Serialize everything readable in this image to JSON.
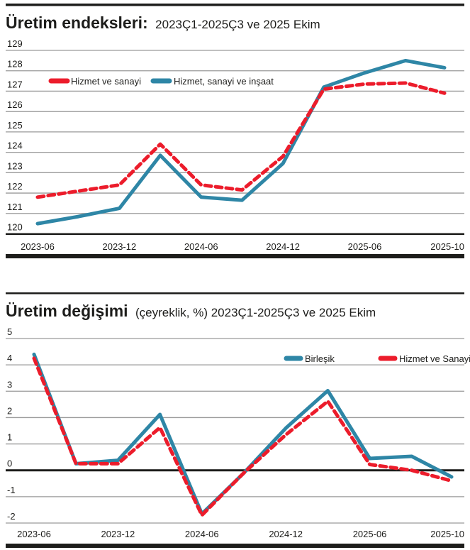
{
  "colors": {
    "blue": "#2e86a6",
    "red": "#ec1c2b",
    "rule": "#1d1d1b"
  },
  "chart_data": [
    {
      "type": "line",
      "title": "Üretim endeksleri:",
      "subtitle": "2023Ç1-2025Ç3 ve 2025 Ekim",
      "xlabel": "",
      "ylabel": "",
      "ylim": [
        120,
        129
      ],
      "yticks": [
        "120",
        "121",
        "122",
        "123",
        "124",
        "125",
        "126",
        "127",
        "128",
        "129"
      ],
      "grid": true,
      "legend_position": "top-left",
      "x": [
        "2023-06",
        "2023-09",
        "2023-12",
        "2024-03",
        "2024-06",
        "2024-09",
        "2024-12",
        "2025-03",
        "2025-06",
        "2025-09",
        "2025-10"
      ],
      "xticks": [
        "2023-06",
        "2023-12",
        "2024-06",
        "2024-12",
        "2025-06",
        "2025-10"
      ],
      "series": [
        {
          "name": "Hizmet ve sanayi",
          "style": "dashed",
          "color": "#ec1c2b",
          "values": [
            121.8,
            122.1,
            122.4,
            124.4,
            122.4,
            122.15,
            123.8,
            127.1,
            127.35,
            127.4,
            126.9
          ]
        },
        {
          "name": "Hizmet, sanayi ve inşaat",
          "style": "solid",
          "color": "#2e86a6",
          "values": [
            120.5,
            120.85,
            121.25,
            123.85,
            121.8,
            121.65,
            123.45,
            127.2,
            127.9,
            128.5,
            128.15
          ]
        }
      ]
    },
    {
      "type": "line",
      "title": "Üretim değişimi",
      "subtitle": "(çeyreklik, %) 2023Ç1-2025Ç3 ve 2025 Ekim",
      "xlabel": "",
      "ylabel": "",
      "ylim": [
        -2,
        5
      ],
      "yticks": [
        "-2",
        "-1",
        "0",
        "1",
        "2",
        "3",
        "4",
        "5"
      ],
      "grid": true,
      "legend_position": "top-right",
      "x": [
        "2023-06",
        "2023-09",
        "2023-12",
        "2024-03",
        "2024-06",
        "2024-09",
        "2024-12",
        "2025-03",
        "2025-06",
        "2025-09",
        "2025-10"
      ],
      "xticks": [
        "2023-06",
        "2023-12",
        "2024-06",
        "2024-12",
        "2025-06",
        "2025-10"
      ],
      "series": [
        {
          "name": "Birleşik",
          "style": "solid",
          "color": "#2e86a6",
          "values": [
            4.4,
            0.25,
            0.38,
            2.12,
            -1.65,
            -0.1,
            1.6,
            3.02,
            0.45,
            0.53,
            -0.25
          ]
        },
        {
          "name": "Hizmet ve Sanayi",
          "style": "dashed",
          "color": "#ec1c2b",
          "values": [
            4.25,
            0.25,
            0.25,
            1.62,
            -1.7,
            -0.1,
            1.35,
            2.62,
            0.22,
            0.0,
            -0.4
          ]
        }
      ]
    }
  ]
}
